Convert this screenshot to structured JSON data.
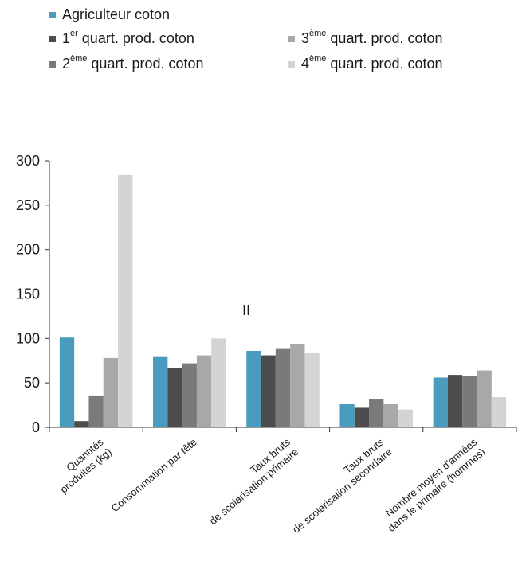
{
  "legend": {
    "items": [
      {
        "pre": "Agriculteur coton",
        "sup": "",
        "post": ""
      },
      {
        "pre": "1",
        "sup": "er",
        "post": " quart. prod. coton"
      },
      {
        "pre": "2",
        "sup": "ème",
        "post": " quart. prod. coton"
      },
      {
        "pre": "3",
        "sup": "ème",
        "post": " quart. prod. coton"
      },
      {
        "pre": "4",
        "sup": "ème",
        "post": " quart. prod. coton"
      }
    ]
  },
  "annotation": "II",
  "colors": [
    "#4a9bbd",
    "#4d4d4d",
    "#7a7a7a",
    "#a8a8a8",
    "#d4d4d4"
  ],
  "chart_data": {
    "type": "bar",
    "categories": [
      [
        "Quantités",
        "produites (kg)"
      ],
      [
        "Consommation par tête"
      ],
      [
        "Taux bruts",
        "de scolarisation primaire"
      ],
      [
        "Taux bruts",
        "de scolarisation secondaire"
      ],
      [
        "Nombre moyen d'années",
        "dans le primaire (hommes)"
      ]
    ],
    "series": [
      {
        "name": "Agriculteur coton",
        "values": [
          101,
          80,
          86,
          26,
          56
        ]
      },
      {
        "name": "1er quart. prod. coton",
        "values": [
          7,
          67,
          81,
          22,
          59
        ]
      },
      {
        "name": "2ème quart. prod. coton",
        "values": [
          35,
          72,
          89,
          32,
          58
        ]
      },
      {
        "name": "3ème quart. prod. coton",
        "values": [
          78,
          81,
          94,
          26,
          64
        ]
      },
      {
        "name": "4ème quart. prod. coton",
        "values": [
          284,
          100,
          84,
          20,
          34
        ]
      }
    ],
    "yticks": [
      0,
      50,
      100,
      150,
      200,
      250,
      300
    ],
    "ylim": [
      0,
      300
    ],
    "grid": false,
    "legend_position": "top-left"
  }
}
